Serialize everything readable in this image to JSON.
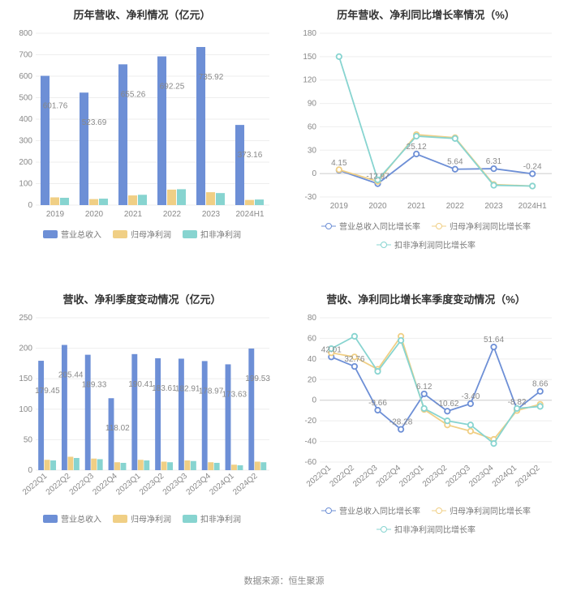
{
  "footer_source": "数据来源：恒生聚源",
  "colors": {
    "series1": "#6d8fd6",
    "series2": "#f0cf85",
    "series3": "#87d4d0",
    "grid": "#eeeeee",
    "axis_zero": "#cccccc",
    "text": "#888888",
    "title": "#333333",
    "background": "#ffffff"
  },
  "panel1": {
    "title": "历年营收、净利情况（亿元）",
    "type": "bar",
    "categories": [
      "2019",
      "2020",
      "2021",
      "2022",
      "2023",
      "2024H1"
    ],
    "series": [
      {
        "name": "营业总收入",
        "values": [
          601.76,
          523.69,
          655.26,
          692.25,
          735.92,
          373.16
        ],
        "color": "#6d8fd6"
      },
      {
        "name": "归母净利润",
        "values": [
          36,
          28,
          45,
          72,
          60,
          24
        ],
        "color": "#f0cf85"
      },
      {
        "name": "扣非净利润",
        "values": [
          34,
          30,
          48,
          74,
          56,
          26
        ],
        "color": "#87d4d0"
      }
    ],
    "labels": [
      601.76,
      523.69,
      655.26,
      692.25,
      735.92,
      373.16
    ],
    "ylim": [
      0,
      800
    ],
    "ytick_step": 100,
    "title_fontsize": 13,
    "label_fontsize": 10,
    "legend_fontsize": 10,
    "bar_group_width": 0.75
  },
  "panel2": {
    "title": "历年营收、净利同比增长率情况（%）",
    "type": "line",
    "categories": [
      "2019",
      "2020",
      "2021",
      "2022",
      "2023",
      "2024H1"
    ],
    "series": [
      {
        "name": "营业总收入同比增长率",
        "values": [
          4.15,
          -12.97,
          25.12,
          5.64,
          6.31,
          -0.24
        ],
        "color": "#6d8fd6"
      },
      {
        "name": "归母净利润同比增长率",
        "values": [
          5,
          -10,
          50,
          46,
          -14,
          -16
        ],
        "color": "#f0cf85"
      },
      {
        "name": "扣非净利润同比增长率",
        "values": [
          150,
          -8,
          48,
          45,
          -15,
          -16
        ],
        "color": "#87d4d0"
      }
    ],
    "labels": {
      "series_index": 0,
      "points": [
        {
          "i": 0,
          "text": "4.15"
        },
        {
          "i": 1,
          "text": "-12.97"
        },
        {
          "i": 2,
          "text": "25.12"
        },
        {
          "i": 3,
          "text": "5.64"
        },
        {
          "i": 4,
          "text": "6.31"
        },
        {
          "i": 5,
          "text": "-0.24"
        }
      ]
    },
    "ylim": [
      -30,
      180
    ],
    "ytick_step": 30,
    "title_fontsize": 13,
    "label_fontsize": 10,
    "legend_fontsize": 10
  },
  "panel3": {
    "title": "营收、净利季度变动情况（亿元）",
    "type": "bar",
    "categories": [
      "2022Q1",
      "2022Q2",
      "2022Q3",
      "2022Q4",
      "2023Q1",
      "2023Q2",
      "2023Q3",
      "2023Q4",
      "2024Q1",
      "2024Q2"
    ],
    "series": [
      {
        "name": "营业总收入",
        "values": [
          179.45,
          205.44,
          189.33,
          118.02,
          190.41,
          183.61,
          182.91,
          178.97,
          173.63,
          199.53
        ],
        "color": "#6d8fd6"
      },
      {
        "name": "归母净利润",
        "values": [
          17,
          22,
          19,
          13,
          17,
          14,
          16,
          13,
          9,
          14
        ],
        "color": "#f0cf85"
      },
      {
        "name": "扣非净利润",
        "values": [
          16,
          20,
          18,
          12,
          16,
          13,
          15,
          12,
          8,
          13
        ],
        "color": "#87d4d0"
      }
    ],
    "labels": [
      179.45,
      205.44,
      189.33,
      118.02,
      190.41,
      183.61,
      182.91,
      178.97,
      173.63,
      199.53
    ],
    "ylim": [
      0,
      250
    ],
    "ytick_step": 50,
    "title_fontsize": 13,
    "label_fontsize": 10,
    "legend_fontsize": 10,
    "bar_group_width": 0.78,
    "x_rotate": true
  },
  "panel4": {
    "title": "营收、净利同比增长率季度变动情况（%）",
    "type": "line",
    "categories": [
      "2022Q1",
      "2022Q2",
      "2022Q3",
      "2022Q4",
      "2023Q1",
      "2023Q2",
      "2023Q3",
      "2023Q4",
      "2024Q1",
      "2024Q2"
    ],
    "series": [
      {
        "name": "营业总收入同比增长率",
        "values": [
          42.01,
          32.76,
          -9.66,
          -28.28,
          6.12,
          -10.62,
          -3.4,
          51.64,
          -8.82,
          8.66
        ],
        "color": "#6d8fd6"
      },
      {
        "name": "归母净利润同比增长率",
        "values": [
          46,
          42,
          30,
          62,
          -9,
          -24,
          -30,
          -38,
          -10,
          -4
        ],
        "color": "#f0cf85"
      },
      {
        "name": "扣非净利润同比增长率",
        "values": [
          50,
          62,
          28,
          58,
          -8,
          -20,
          -24,
          -42,
          -8,
          -6
        ],
        "color": "#87d4d0"
      }
    ],
    "labels": {
      "series_index": 0,
      "points": [
        {
          "i": 0,
          "text": "42.01"
        },
        {
          "i": 1,
          "text": "32.76"
        },
        {
          "i": 2,
          "text": "-9.66"
        },
        {
          "i": 3,
          "text": "-28.28"
        },
        {
          "i": 4,
          "text": "6.12"
        },
        {
          "i": 5,
          "text": "-10.62"
        },
        {
          "i": 6,
          "text": "-3.40"
        },
        {
          "i": 7,
          "text": "51.64"
        },
        {
          "i": 8,
          "text": "-8.82"
        },
        {
          "i": 9,
          "text": "8.66"
        }
      ]
    },
    "ylim": [
      -60,
      80
    ],
    "ytick_step": 20,
    "title_fontsize": 13,
    "label_fontsize": 10,
    "legend_fontsize": 10,
    "x_rotate": true
  }
}
